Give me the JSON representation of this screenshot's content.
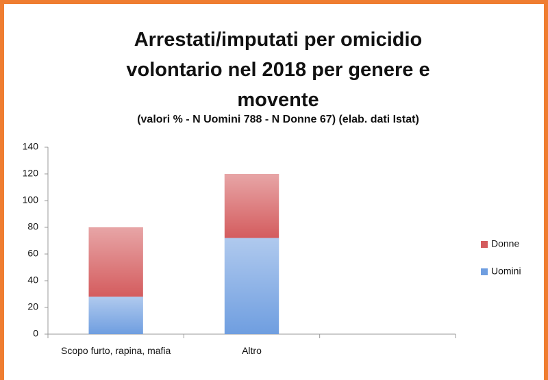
{
  "chart_data": {
    "type": "stacked_bar",
    "title": "Arrestati/imputati per omicidio volontario nel 2018 per genere e movente",
    "subtitle": "(valori % - N Uomini 788 - N Donne 67) (elab. dati Istat)",
    "categories": [
      "Scopo furto, rapina, mafia",
      "Altro",
      null
    ],
    "series": [
      {
        "name": "Uomini",
        "color": "#6f9ee0",
        "values": [
          28,
          72,
          null
        ]
      },
      {
        "name": "Donne",
        "color": "#d45c5e",
        "values": [
          52,
          48,
          null
        ]
      }
    ],
    "ylim": [
      0,
      140
    ],
    "yticks": [
      0,
      20,
      40,
      60,
      80,
      100,
      120,
      140
    ],
    "grid": false,
    "legend": "right"
  }
}
